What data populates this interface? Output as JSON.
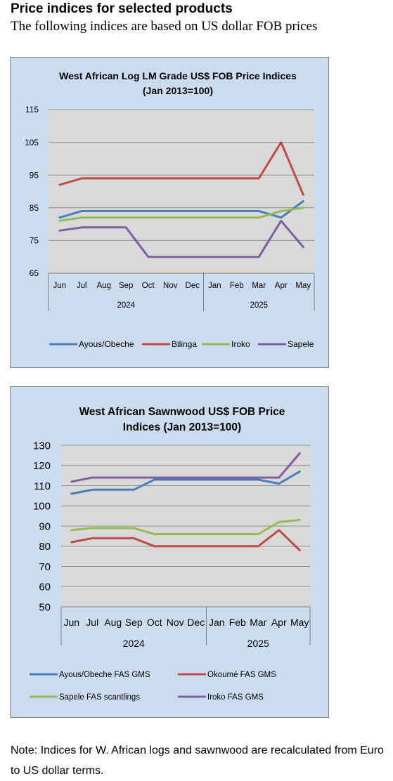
{
  "heading": "Price indices for selected products",
  "subheading": "The following indices are based on US dollar FOB prices",
  "note": "Note: Indices for W. African logs and sawnwood are recalculated from Euro to US dollar terms.",
  "chart_data": [
    {
      "type": "line",
      "title": [
        "West African Log LM Grade US$ FOB Price Indices",
        "(Jan 2013=100)"
      ],
      "categories": [
        "Jun",
        "Jul",
        "Aug",
        "Sep",
        "Oct",
        "Nov",
        "Dec",
        "Jan",
        "Feb",
        "Mar",
        "Apr",
        "May"
      ],
      "year_groups": [
        {
          "label": "2024",
          "start": 0,
          "end": 6
        },
        {
          "label": "2025",
          "start": 7,
          "end": 11
        }
      ],
      "ylim": [
        65,
        115
      ],
      "yticks": [
        65,
        75,
        85,
        95,
        105,
        115
      ],
      "grid": true,
      "legend_position": "bottom",
      "series": [
        {
          "name": "Ayous/Obeche",
          "color": "#4a7ebb",
          "values": [
            82,
            84,
            84,
            84,
            84,
            84,
            84,
            84,
            84,
            84,
            82,
            87
          ]
        },
        {
          "name": "Bilinga",
          "color": "#be4b48",
          "values": [
            92,
            94,
            94,
            94,
            94,
            94,
            94,
            94,
            94,
            94,
            105,
            89
          ]
        },
        {
          "name": "Iroko",
          "color": "#98b954",
          "values": [
            81,
            82,
            82,
            82,
            82,
            82,
            82,
            82,
            82,
            82,
            84,
            85
          ]
        },
        {
          "name": "Sapele",
          "color": "#7d60a0",
          "values": [
            78,
            79,
            79,
            79,
            70,
            70,
            70,
            70,
            70,
            70,
            81,
            73
          ]
        }
      ]
    },
    {
      "type": "line",
      "title": [
        "West African Sawnwood US$ FOB Price",
        "Indices (Jan 2013=100)"
      ],
      "categories": [
        "Jun",
        "Jul",
        "Aug",
        "Sep",
        "Oct",
        "Nov",
        "Dec",
        "Jan",
        "Feb",
        "Mar",
        "Apr",
        "May"
      ],
      "year_groups": [
        {
          "label": "2024",
          "start": 0,
          "end": 6
        },
        {
          "label": "2025",
          "start": 7,
          "end": 11
        }
      ],
      "ylim": [
        50,
        130
      ],
      "yticks": [
        50,
        60,
        70,
        80,
        90,
        100,
        110,
        120,
        130
      ],
      "grid": true,
      "legend_position": "bottom",
      "series": [
        {
          "name": "Ayous/Obeche  FAS GMS",
          "color": "#4a7ebb",
          "values": [
            106,
            108,
            108,
            108,
            113,
            113,
            113,
            113,
            113,
            113,
            111,
            117
          ]
        },
        {
          "name": "Okoumé  FAS GMS",
          "color": "#be4b48",
          "values": [
            82,
            84,
            84,
            84,
            80,
            80,
            80,
            80,
            80,
            80,
            88,
            78
          ]
        },
        {
          "name": "Sapele  FAS scantlings",
          "color": "#98b954",
          "values": [
            88,
            89,
            89,
            89,
            86,
            86,
            86,
            86,
            86,
            86,
            92,
            93
          ]
        },
        {
          "name": "Iroko FAS GMS",
          "color": "#7d60a0",
          "values": [
            112,
            114,
            114,
            114,
            114,
            114,
            114,
            114,
            114,
            114,
            114,
            126
          ]
        }
      ]
    }
  ]
}
